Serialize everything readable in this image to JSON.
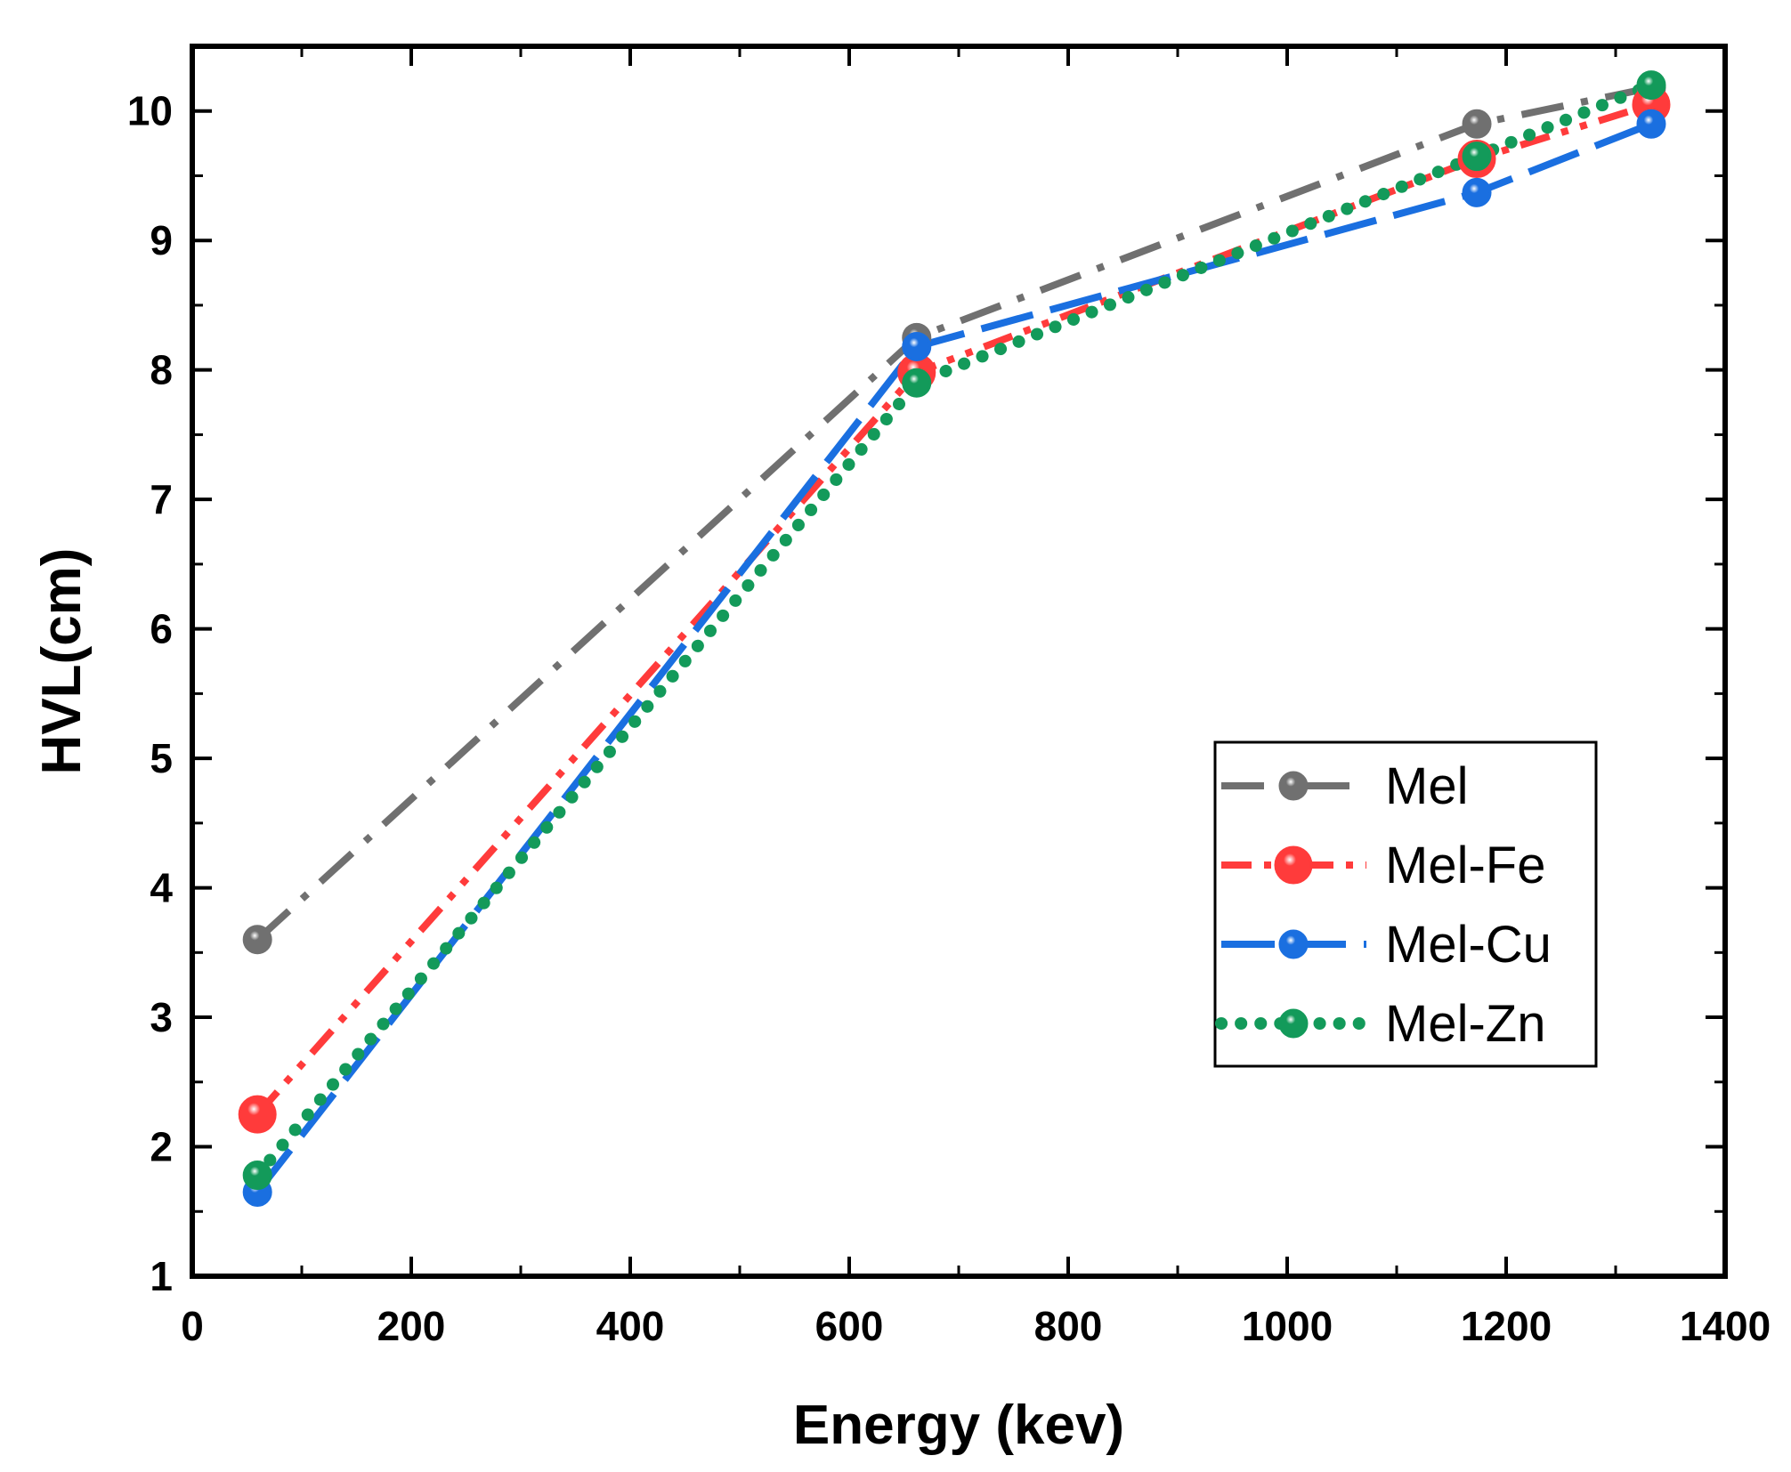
{
  "chart_data": {
    "type": "line",
    "xlabel": "Energy (kev)",
    "ylabel": "HVL(cm)",
    "xlim": [
      0,
      1400
    ],
    "ylim": [
      1,
      10.5
    ],
    "x_ticks": [
      0,
      200,
      400,
      600,
      800,
      1000,
      1200,
      1400
    ],
    "y_ticks": [
      1,
      2,
      3,
      4,
      5,
      6,
      7,
      8,
      9,
      10
    ],
    "x": [
      59.5,
      661.6,
      1173.2,
      1332.5
    ],
    "legend_position": "center-right",
    "grid": false,
    "series": [
      {
        "name": "Mel",
        "values": [
          3.6,
          8.25,
          9.9,
          10.18
        ],
        "color": "#707070",
        "dash": "dashdot",
        "marker_size": "medium"
      },
      {
        "name": "Mel-Fe",
        "values": [
          2.25,
          7.98,
          9.63,
          10.05
        ],
        "color": "#ff3b3b",
        "dash": "dashdotdot",
        "marker_size": "large"
      },
      {
        "name": "Mel-Cu",
        "values": [
          1.65,
          8.18,
          9.37,
          9.9
        ],
        "color": "#1a6fe0",
        "dash": "longdash",
        "marker_size": "medium"
      },
      {
        "name": "Mel-Zn",
        "values": [
          1.78,
          7.9,
          9.65,
          10.2
        ],
        "color": "#139a5a",
        "dash": "dot",
        "marker_size": "medium"
      }
    ]
  }
}
